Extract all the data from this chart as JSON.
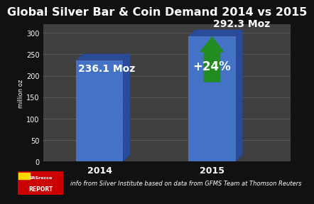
{
  "title": "Global Silver Bar & Coin Demand 2014 vs 2015",
  "categories": [
    "2014",
    "2015"
  ],
  "values": [
    236.1,
    292.3
  ],
  "bar_color": "#4472C4",
  "bar_color_dark": "#2A4A9A",
  "bar_color_bottom": "#1a3070",
  "background_color": "#111111",
  "plot_bg_color": "#404040",
  "grid_color": "#606060",
  "ylim": [
    0,
    320
  ],
  "yticks": [
    0,
    50,
    100,
    150,
    200,
    250,
    300
  ],
  "ylabel": "million oz",
  "bar_labels": [
    "236.1 Moz",
    "292.3 Moz"
  ],
  "pct_label": "+24%",
  "arrow_color": "#228B22",
  "arrow_color_dark": "#145214",
  "text_color": "#ffffff",
  "footer_text": "info from Silver Institute based on data from GFMS Team at Thomson Reuters",
  "title_fontsize": 11.5,
  "label_fontsize": 10,
  "pct_fontsize": 12,
  "ylabel_fontsize": 6,
  "xtick_fontsize": 9,
  "ytick_fontsize": 7,
  "footer_fontsize": 6
}
